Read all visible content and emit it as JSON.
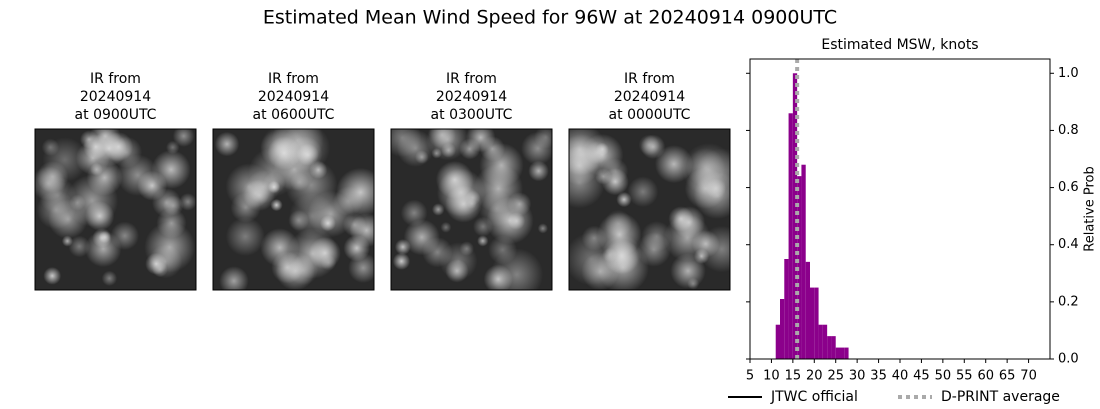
{
  "title": "Estimated Mean Wind Speed for 96W at 20240914 0900UTC",
  "panels": [
    {
      "lines": [
        "IR from",
        "20240914",
        "at 0900UTC"
      ]
    },
    {
      "lines": [
        "IR from",
        "20240914",
        "at 0600UTC"
      ]
    },
    {
      "lines": [
        "IR from",
        "20240914",
        "at 0300UTC"
      ]
    },
    {
      "lines": [
        "IR from",
        "20240914",
        "at 0000UTC"
      ]
    }
  ],
  "chart_data": {
    "type": "histogram",
    "title": "Estimated MSW, knots",
    "bins": [
      11,
      12,
      13,
      14,
      15,
      16,
      17,
      18,
      19,
      20,
      21,
      22,
      23,
      24,
      25,
      26,
      27,
      28
    ],
    "values": [
      0.12,
      0.21,
      0.35,
      0.86,
      1.0,
      0.64,
      0.68,
      0.34,
      0.25,
      0.25,
      0.12,
      0.12,
      0.08,
      0.08,
      0.04,
      0.04,
      0.04
    ],
    "color": "#8b008b",
    "xlim": [
      5,
      75
    ],
    "xticks": [
      5,
      10,
      15,
      20,
      25,
      30,
      35,
      40,
      45,
      50,
      55,
      60,
      65,
      70
    ],
    "ylim": [
      0,
      1.05
    ],
    "yticks": [
      {
        "value": 0,
        "label": "0.0"
      },
      0.2,
      0.4,
      0.6,
      0.8,
      {
        "value": 1,
        "label": "1.0"
      }
    ],
    "ylabel": "Relative Prob",
    "legend": [
      {
        "name": "JTWC official",
        "color": "#000000",
        "style": "solid"
      },
      {
        "name": "D-PRINT average",
        "color": "#aaaaaa",
        "style": "dotted",
        "value": 16
      }
    ]
  }
}
